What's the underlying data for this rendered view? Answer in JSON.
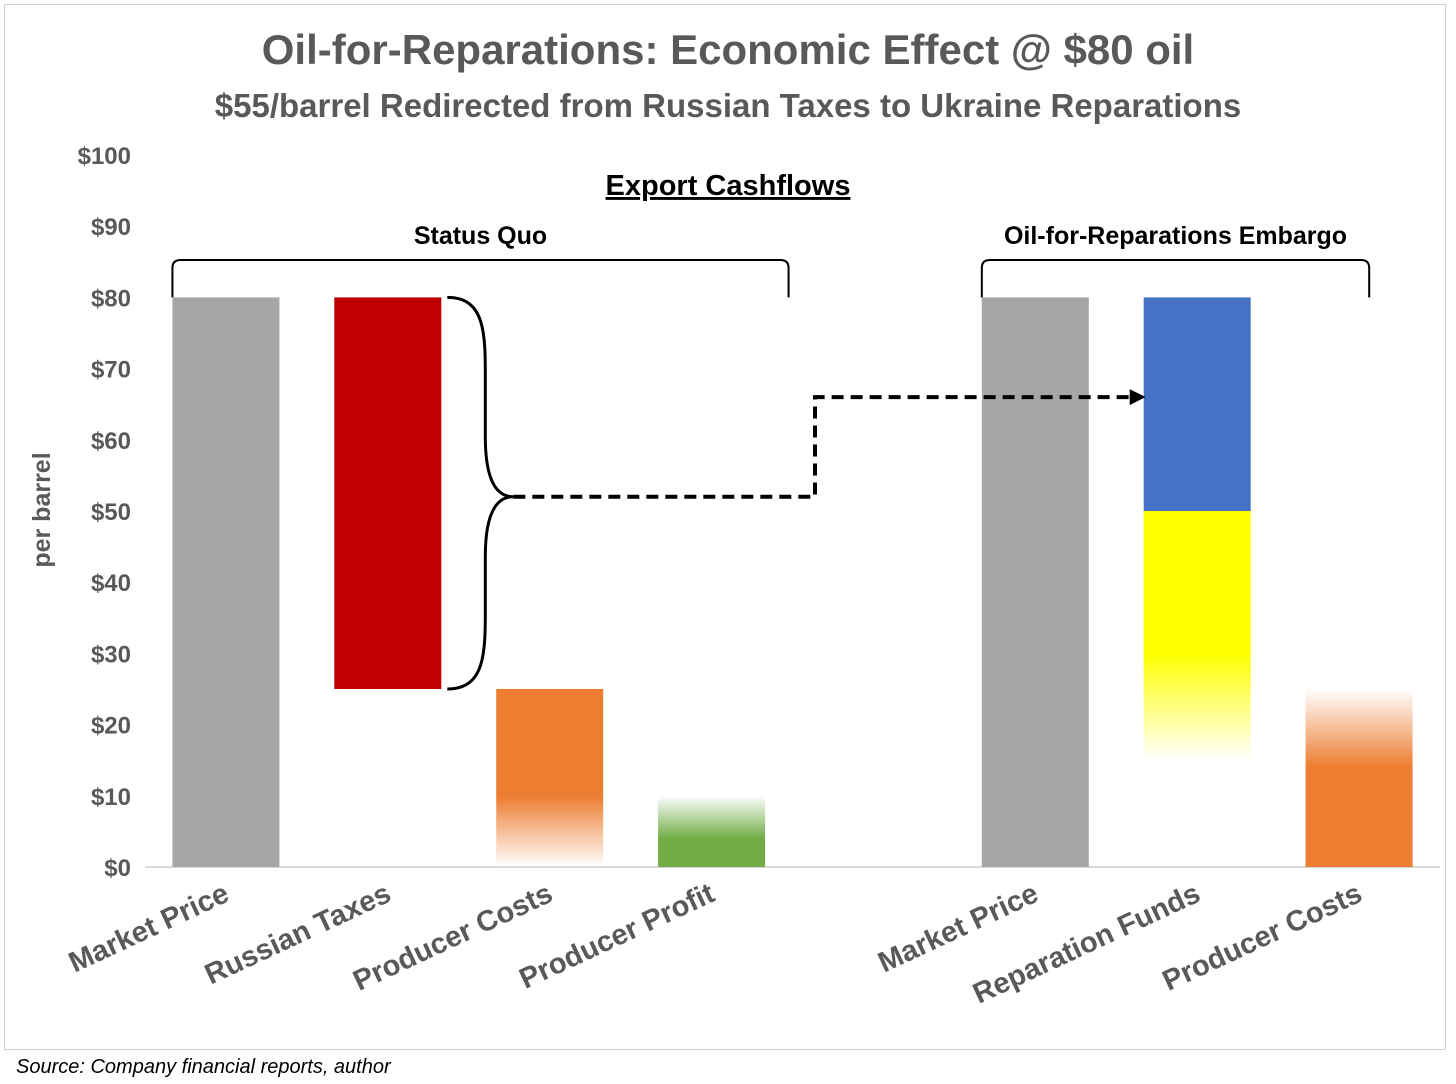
{
  "chart_data": {
    "type": "bar",
    "title": "Oil-for-Reparations: Economic Effect @ $80 oil",
    "subtitle": "$55/barrel Redirected from Russian Taxes to Ukraine Reparations",
    "section_title": "Export Cashflows",
    "ylabel": "per barrel",
    "ylim": [
      0,
      100
    ],
    "yticks": [
      "$0",
      "$10",
      "$20",
      "$30",
      "$40",
      "$50",
      "$60",
      "$70",
      "$80",
      "$90",
      "$100"
    ],
    "ytick_values": [
      0,
      10,
      20,
      30,
      40,
      50,
      60,
      70,
      80,
      90,
      100
    ],
    "grid": false,
    "groups": [
      {
        "name": "Status Quo",
        "first": 0,
        "last": 3
      },
      {
        "name": "Oil-for-Reparations Embargo",
        "first": 5,
        "last": 6
      }
    ],
    "categories": [
      "Market Price",
      "Russian Taxes",
      "Producer Costs",
      "Producer Profit",
      "",
      "Market Price",
      "Reparation Funds",
      "Producer Costs"
    ],
    "bars": [
      {
        "label": "Market Price",
        "bottom": 0,
        "top": 80,
        "color": "#a6a6a6",
        "style": "solid"
      },
      {
        "label": "Russian Taxes",
        "bottom": 25,
        "top": 80,
        "color": "#c00000",
        "style": "solid"
      },
      {
        "label": "Producer Costs",
        "bottom": 0,
        "top": 25,
        "color": "#ed7d31",
        "style": "fade-bottom",
        "solid_to": 10
      },
      {
        "label": "Producer Profit",
        "bottom": 0,
        "top": 10,
        "color": "#70ad47",
        "style": "fade-top",
        "solid_to": 4
      },
      null,
      {
        "label": "Market Price",
        "bottom": 0,
        "top": 80,
        "color": "#a6a6a6",
        "style": "solid"
      },
      {
        "label": "Reparation Funds",
        "segments": [
          {
            "bottom": 50,
            "top": 80,
            "color": "#4472c4",
            "style": "solid"
          },
          {
            "bottom": 15,
            "top": 50,
            "color": "#ffff00",
            "style": "fade-bottom",
            "solid_to": 30
          }
        ]
      },
      {
        "label": "Producer Costs",
        "bottom": 0,
        "top": 25,
        "color": "#ed7d31",
        "style": "fade-top",
        "solid_to": 14
      }
    ],
    "arrow": {
      "from_y": 52,
      "to_y": 66
    },
    "colors": {
      "axis": "#d9d9d9",
      "text": "#595959",
      "dark": "#000000"
    }
  },
  "source_note": "Source: Company financial reports, author"
}
